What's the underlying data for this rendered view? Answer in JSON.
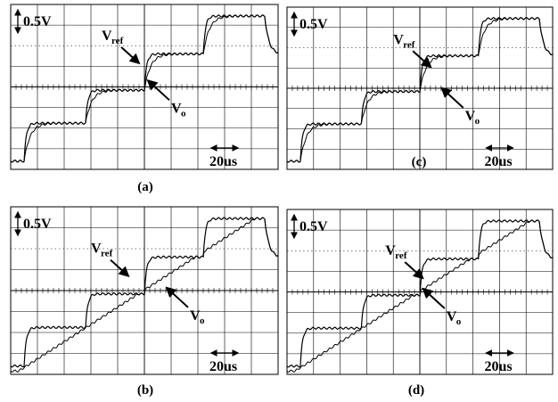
{
  "panels": [
    {
      "caption": "(a)",
      "scale": "0.5V",
      "vref": {
        "main": "V",
        "sub": "ref"
      },
      "vo": {
        "main": "V",
        "sub": "o"
      },
      "time": "20us"
    },
    {
      "caption": "(c)",
      "scale": "0.5V",
      "vref": {
        "main": "V",
        "sub": "ref"
      },
      "vo": {
        "main": "V",
        "sub": "o"
      },
      "time": "20us"
    },
    {
      "caption": "(b)",
      "scale": "0.5V",
      "vref": {
        "main": "V",
        "sub": "ref"
      },
      "vo": {
        "main": "V",
        "sub": "o"
      },
      "time": "20us"
    },
    {
      "caption": "(d)",
      "scale": "0.5V",
      "vref": {
        "main": "V",
        "sub": "ref"
      },
      "vo": {
        "main": "V",
        "sub": "o"
      },
      "time": "20us"
    }
  ]
}
